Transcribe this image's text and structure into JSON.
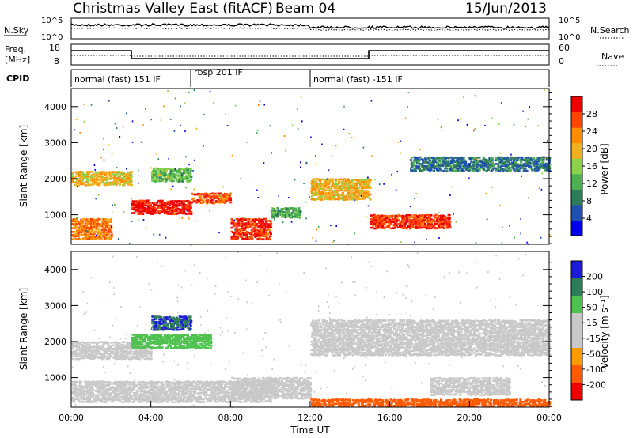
{
  "header": {
    "title": "Christmas Valley East (fitACF)",
    "beam": "Beam 04",
    "date": "15/Jun/2013"
  },
  "top_panels": {
    "nsky_label": "N.Sky",
    "nsky_ticks": [
      "10^5",
      "10^0"
    ],
    "nsearch_label": "N.Search",
    "nsearch_ticks": [
      "10^5",
      "10^0"
    ],
    "freq_label_line1": "Freq.",
    "freq_label_line2": "[MHz]",
    "freq_ticks": [
      "18",
      "8"
    ],
    "nave_label": "Nave",
    "nave_ticks": [
      "60",
      "0"
    ],
    "cpid_label": "CPID",
    "cpid_segments": [
      {
        "label": "normal (fast) 151 IF",
        "start": 0,
        "end": 6
      },
      {
        "label": "rbsp 201 IF",
        "start": 6,
        "end": 12
      },
      {
        "label": "normal (fast) -151 IF",
        "start": 12,
        "end": 24
      }
    ]
  },
  "colors": {
    "power": [
      "#0000ee",
      "#1f4fb0",
      "#2e7d5a",
      "#4caf50",
      "#8bd34a",
      "#f0b020",
      "#ff8c00",
      "#ff4500",
      "#ee0000"
    ],
    "velocity": [
      "#1c1cd8",
      "#2e7d5a",
      "#4fc14f",
      "#c8c8c8",
      "#c8c8c8",
      "#ff9a00",
      "#ff5a00",
      "#ee0000"
    ]
  },
  "chart_data": [
    {
      "type": "heatmap",
      "name": "power",
      "ylabel": "Slant Range [km]",
      "yticks": [
        "1000",
        "2000",
        "3000",
        "4000"
      ],
      "ylim": [
        180,
        4500
      ],
      "xlim": [
        0,
        24
      ],
      "colorbar_label": "Power [dB]",
      "colorbar_ticks": [
        "4",
        "8",
        "12",
        "16",
        "20",
        "24",
        "28"
      ],
      "colorbar_range": [
        0,
        32
      ],
      "bands": [
        {
          "x": [
            0,
            3
          ],
          "range": [
            1800,
            2200
          ],
          "level": 20
        },
        {
          "x": [
            3,
            6
          ],
          "range": [
            1000,
            1400
          ],
          "level": 30
        },
        {
          "x": [
            4,
            6
          ],
          "range": [
            1900,
            2300
          ],
          "level": 14
        },
        {
          "x": [
            6,
            8
          ],
          "range": [
            1300,
            1600
          ],
          "level": 26
        },
        {
          "x": [
            8,
            10
          ],
          "range": [
            300,
            900
          ],
          "level": 28
        },
        {
          "x": [
            10,
            11.5
          ],
          "range": [
            900,
            1200
          ],
          "level": 12
        },
        {
          "x": [
            12,
            15
          ],
          "range": [
            1400,
            2000
          ],
          "level": 20
        },
        {
          "x": [
            15,
            19
          ],
          "range": [
            600,
            1000
          ],
          "level": 28
        },
        {
          "x": [
            17,
            24
          ],
          "range": [
            2200,
            2600
          ],
          "level": 8
        },
        {
          "x": [
            0,
            2
          ],
          "range": [
            300,
            900
          ],
          "level": 24
        }
      ]
    },
    {
      "type": "heatmap",
      "name": "velocity",
      "xlabel": "Time UT",
      "xticks": [
        "00:00",
        "04:00",
        "08:00",
        "12:00",
        "16:00",
        "20:00",
        "00:00"
      ],
      "ylabel": "Slant Range [km]",
      "yticks": [
        "1000",
        "2000",
        "3000",
        "4000"
      ],
      "ylim": [
        180,
        4500
      ],
      "xlim": [
        0,
        24
      ],
      "colorbar_label": "Velocity [m s⁻¹]",
      "colorbar_ticks": [
        "200",
        "100",
        "50",
        "15",
        "-15",
        "-50",
        "-100",
        "-200"
      ],
      "bands": [
        {
          "x": [
            0,
            4
          ],
          "range": [
            1500,
            2000
          ],
          "level": -5
        },
        {
          "x": [
            3,
            7
          ],
          "range": [
            1800,
            2200
          ],
          "level": 60
        },
        {
          "x": [
            4,
            6
          ],
          "range": [
            2300,
            2700
          ],
          "level": 150
        },
        {
          "x": [
            0,
            10
          ],
          "range": [
            300,
            900
          ],
          "level": -5
        },
        {
          "x": [
            8,
            12
          ],
          "range": [
            400,
            1000
          ],
          "level": -5
        },
        {
          "x": [
            12,
            24
          ],
          "range": [
            1600,
            2600
          ],
          "level": -5
        },
        {
          "x": [
            12,
            24
          ],
          "range": [
            180,
            400
          ],
          "level": -60
        },
        {
          "x": [
            18,
            22
          ],
          "range": [
            500,
            1000
          ],
          "level": -5
        }
      ]
    }
  ]
}
